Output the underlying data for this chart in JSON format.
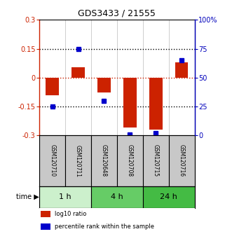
{
  "title": "GDS3433 / 21555",
  "samples": [
    "GSM120710",
    "GSM120711",
    "GSM120648",
    "GSM120708",
    "GSM120715",
    "GSM120716"
  ],
  "log10_ratio": [
    -0.09,
    0.055,
    -0.075,
    -0.26,
    -0.27,
    0.08
  ],
  "percentile_rank": [
    25,
    75,
    30,
    1,
    2,
    65
  ],
  "ylim_left": [
    -0.3,
    0.3
  ],
  "ylim_right": [
    0,
    100
  ],
  "yticks_left": [
    -0.3,
    -0.15,
    0,
    0.15,
    0.3
  ],
  "yticks_right": [
    0,
    25,
    50,
    75,
    100
  ],
  "ytick_labels_right": [
    "0",
    "25",
    "50",
    "75",
    "100%"
  ],
  "hlines": [
    0.15,
    -0.15
  ],
  "hline_zero": 0,
  "bar_color_red": "#cc2200",
  "dot_color_blue": "#0000cc",
  "bg_color": "#ffffff",
  "sample_box_color": "#c8c8c8",
  "left_axis_color": "#cc2200",
  "right_axis_color": "#0000bb",
  "bar_width": 0.5,
  "time_groups": [
    {
      "label": "1 h",
      "start": 0,
      "end": 2,
      "color": "#ccf0cc"
    },
    {
      "label": "4 h",
      "start": 2,
      "end": 4,
      "color": "#66cc66"
    },
    {
      "label": "24 h",
      "start": 4,
      "end": 6,
      "color": "#44bb44"
    }
  ],
  "legend_items": [
    {
      "label": "log10 ratio",
      "color": "#cc2200"
    },
    {
      "label": "percentile rank within the sample",
      "color": "#0000cc"
    }
  ]
}
